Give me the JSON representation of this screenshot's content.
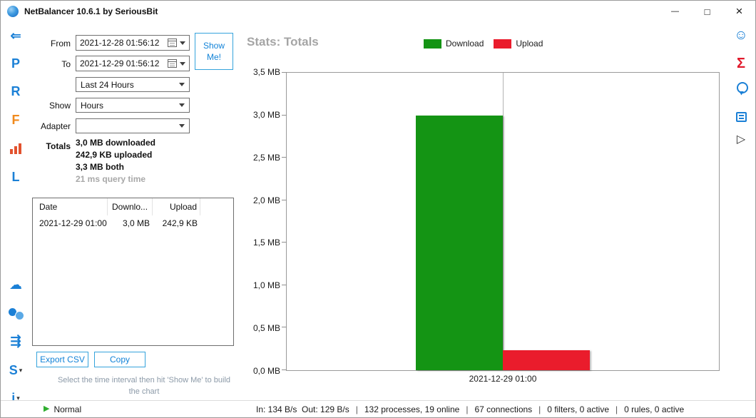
{
  "window": {
    "title": "NetBalancer 10.6.1 by SeriousBit",
    "controls": {
      "minimize": "—",
      "maximize": "□",
      "close": "×"
    }
  },
  "icons": {
    "back": "⇐",
    "letter_p": "P",
    "letter_r": "R",
    "letter_f": "F",
    "letter_l": "L",
    "letter_s": "S",
    "letter_i": "i",
    "cloud": "☁",
    "arrows": "⇶",
    "smiley": "☺",
    "sigma": "Σ",
    "play_outline": "▷",
    "status_play": "▶",
    "dropdown_caret": "▾",
    "stats_chart": "css-bar-shape",
    "dual_circles": "css-circle-shape",
    "medal": "css-medal-shape",
    "notes": "css-notes-shape",
    "calendar": "css-calendar-shape",
    "app_logo": "css-globe-shape"
  },
  "panel": {
    "from_label": "From",
    "from_value": "2021-12-28 01:56:12",
    "to_label": "To",
    "to_value": "2021-12-29 01:56:12",
    "show_me_label": "Show Me!",
    "interval_value": "Last 24 Hours",
    "show_label": "Show",
    "show_value": "Hours",
    "adapter_label": "Adapter",
    "adapter_value": "",
    "totals_label": "Totals",
    "totals_lines": [
      "3,0 MB downloaded",
      "242,9 KB uploaded",
      "3,3 MB both"
    ],
    "query_time": "21 ms query time",
    "table": {
      "columns": [
        "Date",
        "Downlo...",
        "Upload"
      ],
      "rows": [
        [
          "2021-12-29 01:00",
          "3,0 MB",
          "242,9 KB"
        ]
      ]
    },
    "export_csv_label": "Export CSV",
    "copy_label": "Copy",
    "hint": "Select the time interval then hit 'Show Me' to build the chart"
  },
  "chart_data": {
    "type": "bar",
    "title": "Stats: Totals",
    "categories": [
      "2021-12-29 01:00"
    ],
    "series": [
      {
        "name": "Download",
        "color": "#149414",
        "values_mb": [
          3.0
        ]
      },
      {
        "name": "Upload",
        "color": "#ea1c2c",
        "values_mb": [
          0.237
        ]
      }
    ],
    "ylim": [
      0,
      3.5
    ],
    "ytick_labels": [
      "3,5 MB",
      "3,0 MB",
      "2,5 MB",
      "2,0 MB",
      "1,5 MB",
      "1,0 MB",
      "0,5 MB",
      "0,0 MB"
    ],
    "grid": "category-divider-only",
    "legend_position": "top"
  },
  "status_bar": {
    "mode": "Normal",
    "segments": [
      "In: 134 B/s  Out: 129 B/s",
      "132 processes, 19 online",
      "67 connections",
      "0 filters, 0 active",
      "0 rules, 0 active"
    ]
  }
}
